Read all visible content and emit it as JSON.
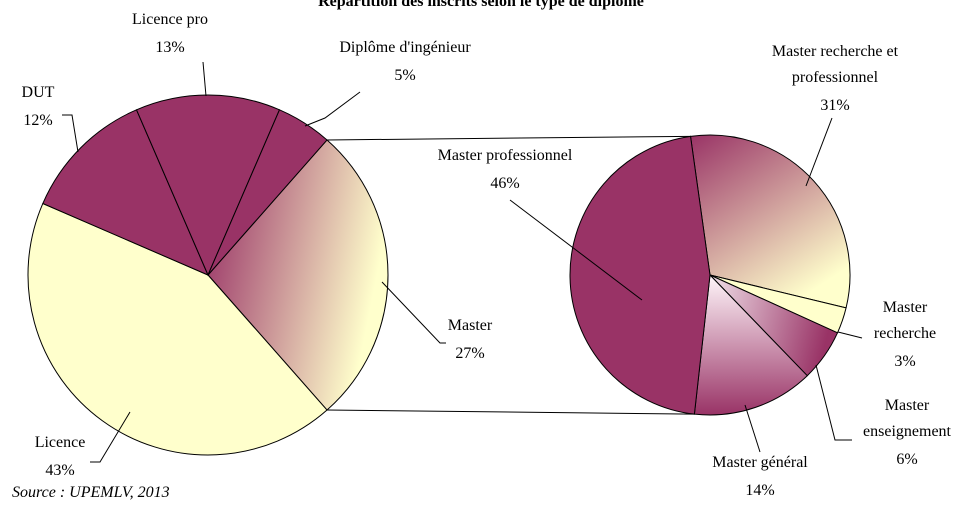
{
  "title": "Répartition des inscrits selon le type de diplôme",
  "source": "Source : UPEMLV, 2013",
  "chart_data": [
    {
      "type": "pie",
      "names": [
        [
          "Master"
        ],
        [
          "Licence"
        ],
        [
          "DUT"
        ],
        [
          "Licence pro"
        ],
        [
          "Diplôme d'ingénieur"
        ]
      ],
      "values": [
        27,
        43,
        12,
        13,
        5
      ],
      "value_labels": [
        "27%",
        "43%",
        "12%",
        "13%",
        "5%"
      ],
      "colors": [
        "url(#gMaster)",
        "#ffffcc",
        "#993366",
        "#993366",
        "#993366"
      ]
    },
    {
      "type": "pie",
      "names": [
        [
          "Master recherche et",
          "professionnel"
        ],
        [
          "Master",
          "recherche"
        ],
        [
          "Master",
          "enseignement"
        ],
        [
          "Master général"
        ],
        [
          "Master professionnel"
        ]
      ],
      "values": [
        31,
        3,
        6,
        14,
        46
      ],
      "value_labels": [
        "31%",
        "3%",
        "6%",
        "14%",
        "46%"
      ],
      "colors": [
        "url(#gRP)",
        "#ffffcc",
        "url(#gEns)",
        "url(#gGen)",
        "#993366"
      ]
    }
  ]
}
